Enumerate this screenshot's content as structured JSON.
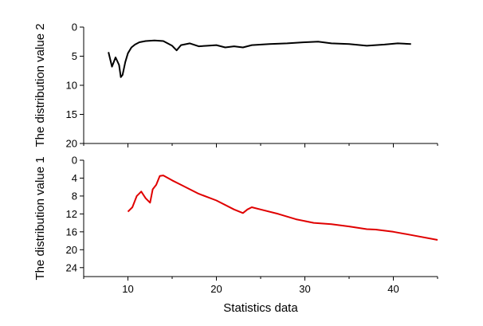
{
  "chart_data": {
    "type": "line",
    "shared_x": {
      "label": "Statistics data",
      "xlim": [
        5,
        45
      ],
      "ticks": [
        10,
        20,
        30,
        40
      ],
      "tick_labels": [
        "10",
        "20",
        "30",
        "40"
      ]
    },
    "panels": [
      {
        "ylabel": "The distribution value 2",
        "ylim": [
          0,
          20
        ],
        "inverted_y": true,
        "ticks": [
          0,
          5,
          10,
          15,
          20
        ],
        "tick_labels": [
          "0",
          "5",
          "10",
          "15",
          "20"
        ],
        "color": "#000000",
        "x": [
          7.8,
          8.2,
          8.6,
          9.0,
          9.2,
          9.4,
          9.7,
          10.0,
          10.4,
          10.8,
          11.3,
          12.0,
          13.0,
          14.0,
          15.0,
          15.5,
          16.0,
          17.0,
          18.0,
          19.0,
          20.0,
          21.0,
          22.0,
          23.0,
          24.0,
          26.0,
          28.0,
          30.0,
          31.5,
          33.0,
          35.0,
          37.0,
          39.0,
          40.5,
          42.0
        ],
        "values": [
          4.3,
          6.8,
          5.2,
          6.5,
          8.6,
          8.2,
          6.0,
          4.5,
          3.5,
          3.0,
          2.6,
          2.4,
          2.3,
          2.4,
          3.2,
          4.0,
          3.1,
          2.8,
          3.3,
          3.2,
          3.1,
          3.5,
          3.3,
          3.5,
          3.1,
          2.9,
          2.8,
          2.6,
          2.5,
          2.8,
          2.9,
          3.2,
          3.0,
          2.8,
          2.9
        ]
      },
      {
        "ylabel": "The distribution value 1",
        "ylim": [
          0,
          26
        ],
        "inverted_y": true,
        "ticks": [
          0,
          4,
          8,
          12,
          16,
          20,
          24
        ],
        "tick_labels": [
          "0",
          "4",
          "8",
          "12",
          "16",
          "20",
          "24"
        ],
        "color": "#e00000",
        "x": [
          10.0,
          10.5,
          11.0,
          11.5,
          12.0,
          12.5,
          12.8,
          13.2,
          13.6,
          14.0,
          15.0,
          16.0,
          17.0,
          18.0,
          20.0,
          22.0,
          23.0,
          23.5,
          24.0,
          25.0,
          27.0,
          29.0,
          31.0,
          33.0,
          35.0,
          37.0,
          38.0,
          40.0,
          42.0,
          45.0
        ],
        "values": [
          11.5,
          10.5,
          8.0,
          7.0,
          8.5,
          9.5,
          6.5,
          5.5,
          3.5,
          3.4,
          4.5,
          5.5,
          6.5,
          7.5,
          9.0,
          11.0,
          11.8,
          11.0,
          10.5,
          11.0,
          12.0,
          13.2,
          14.0,
          14.3,
          14.8,
          15.4,
          15.5,
          16.0,
          16.7,
          17.8
        ]
      }
    ]
  }
}
